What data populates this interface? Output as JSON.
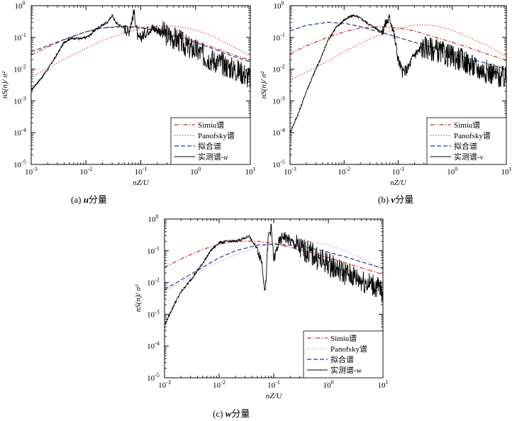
{
  "chart_data": [
    {
      "type": "line",
      "panel": "a",
      "caption": "(a) u分量",
      "xlabel": "nZ/U",
      "ylabel": "nS(n)/ σ²",
      "xscale": "log",
      "yscale": "log",
      "xlim": [
        0.001,
        10
      ],
      "ylim": [
        1e-05,
        1
      ],
      "x_ticks": [
        {
          "value": 0.001,
          "base": "10",
          "exp": "-3"
        },
        {
          "value": 0.01,
          "base": "10",
          "exp": "-2"
        },
        {
          "value": 0.1,
          "base": "10",
          "exp": "-1"
        },
        {
          "value": 1,
          "base": "10",
          "exp": "0"
        },
        {
          "value": 10,
          "base": "10",
          "exp": "1"
        }
      ],
      "y_ticks": [
        {
          "value": 1e-05,
          "base": "10",
          "exp": "-5"
        },
        {
          "value": 0.0001,
          "base": "10",
          "exp": "-4"
        },
        {
          "value": 0.001,
          "base": "10",
          "exp": "-3"
        },
        {
          "value": 0.01,
          "base": "10",
          "exp": "-2"
        },
        {
          "value": 0.1,
          "base": "10",
          "exp": "-1"
        },
        {
          "value": 1,
          "base": "10",
          "exp": "0"
        }
      ],
      "legend_position": "bottom-right",
      "series": [
        {
          "name": "Simiu谱",
          "style": "dashdot",
          "color": "#d62728",
          "x": [
            0.001,
            0.002,
            0.005,
            0.01,
            0.02,
            0.05,
            0.1,
            0.2,
            0.5,
            1,
            2,
            5,
            10
          ],
          "y": [
            0.028,
            0.05,
            0.1,
            0.15,
            0.2,
            0.23,
            0.21,
            0.17,
            0.11,
            0.075,
            0.05,
            0.028,
            0.019
          ]
        },
        {
          "name": "Panofsky谱",
          "style": "dotted",
          "color": "#d62728",
          "x": [
            0.001,
            0.002,
            0.005,
            0.01,
            0.02,
            0.05,
            0.1,
            0.2,
            0.5,
            1,
            2,
            5,
            10
          ],
          "y": [
            0.0055,
            0.011,
            0.025,
            0.045,
            0.08,
            0.14,
            0.19,
            0.23,
            0.22,
            0.17,
            0.11,
            0.05,
            0.026
          ]
        },
        {
          "name": "拟合谱",
          "style": "dashed",
          "color": "#1f3f8f",
          "x": [
            0.001,
            0.002,
            0.005,
            0.01,
            0.02,
            0.05,
            0.1,
            0.2,
            0.5,
            1,
            2,
            5,
            10
          ],
          "y": [
            0.035,
            0.055,
            0.1,
            0.15,
            0.2,
            0.22,
            0.2,
            0.16,
            0.1,
            0.068,
            0.045,
            0.025,
            0.017
          ]
        },
        {
          "name": "实测谱-u",
          "style": "solid",
          "color": "#000000",
          "x": [
            0.001,
            0.0015,
            0.002,
            0.003,
            0.004,
            0.005,
            0.006,
            0.008,
            0.01,
            0.012,
            0.015,
            0.02,
            0.025,
            0.03,
            0.035,
            0.04,
            0.05,
            0.06,
            0.07,
            0.075,
            0.08,
            0.09,
            0.1,
            0.15,
            0.2,
            0.3,
            0.5,
            0.7,
            1,
            1.5,
            2,
            3,
            5,
            7,
            10
          ],
          "y": [
            0.0022,
            0.005,
            0.01,
            0.03,
            0.07,
            0.09,
            0.095,
            0.09,
            0.1,
            0.12,
            0.18,
            0.25,
            0.3,
            0.5,
            0.3,
            0.25,
            0.2,
            0.15,
            0.4,
            0.6,
            0.35,
            0.08,
            0.1,
            0.2,
            0.18,
            0.12,
            0.08,
            0.05,
            0.04,
            0.025,
            0.02,
            0.015,
            0.01,
            0.008,
            0.005
          ]
        }
      ],
      "legend_labels": [
        {
          "text": "Simiu谱",
          "suffix": ""
        },
        {
          "text": "Panofsky谱",
          "suffix": ""
        },
        {
          "text": "拟合谱",
          "suffix": ""
        },
        {
          "text": "实测谱-",
          "suffix": "u"
        }
      ]
    },
    {
      "type": "line",
      "panel": "b",
      "caption": "(b) v分量",
      "xlabel": "nZ/U",
      "ylabel": "nS(n)/ σ²",
      "xscale": "log",
      "yscale": "log",
      "xlim": [
        0.001,
        10
      ],
      "ylim": [
        1e-05,
        1
      ],
      "x_ticks": [
        {
          "value": 0.001,
          "base": "10",
          "exp": "-3"
        },
        {
          "value": 0.01,
          "base": "10",
          "exp": "-2"
        },
        {
          "value": 0.1,
          "base": "10",
          "exp": "-1"
        },
        {
          "value": 1,
          "base": "10",
          "exp": "0"
        },
        {
          "value": 10,
          "base": "10",
          "exp": "1"
        }
      ],
      "y_ticks": [
        {
          "value": 1e-05,
          "base": "10",
          "exp": "-5"
        },
        {
          "value": 0.0001,
          "base": "10",
          "exp": "-4"
        },
        {
          "value": 0.001,
          "base": "10",
          "exp": "-3"
        },
        {
          "value": 0.01,
          "base": "10",
          "exp": "-2"
        },
        {
          "value": 0.1,
          "base": "10",
          "exp": "-1"
        },
        {
          "value": 1,
          "base": "10",
          "exp": "0"
        }
      ],
      "legend_position": "bottom-right",
      "series": [
        {
          "name": "Simiu谱",
          "style": "dashdot",
          "color": "#d62728",
          "x": [
            0.001,
            0.002,
            0.005,
            0.01,
            0.02,
            0.05,
            0.1,
            0.2,
            0.5,
            1,
            2,
            5,
            10
          ],
          "y": [
            0.03,
            0.055,
            0.1,
            0.15,
            0.2,
            0.22,
            0.2,
            0.16,
            0.1,
            0.07,
            0.048,
            0.028,
            0.019
          ]
        },
        {
          "name": "Panofsky谱",
          "style": "dotted",
          "color": "#d62728",
          "x": [
            0.001,
            0.002,
            0.005,
            0.01,
            0.02,
            0.05,
            0.1,
            0.2,
            0.3,
            0.5,
            1,
            2,
            5,
            10
          ],
          "y": [
            0.0045,
            0.008,
            0.018,
            0.035,
            0.065,
            0.13,
            0.19,
            0.24,
            0.25,
            0.23,
            0.17,
            0.1,
            0.05,
            0.025
          ]
        },
        {
          "name": "拟合谱",
          "style": "dashed",
          "color": "#1f3f8f",
          "x": [
            0.001,
            0.002,
            0.005,
            0.01,
            0.02,
            0.05,
            0.1,
            0.2,
            0.5,
            1,
            2,
            5,
            10
          ],
          "y": [
            0.16,
            0.24,
            0.3,
            0.28,
            0.22,
            0.14,
            0.1,
            0.07,
            0.045,
            0.03,
            0.022,
            0.014,
            0.01
          ]
        },
        {
          "name": "实测谱-v",
          "style": "solid",
          "color": "#000000",
          "x": [
            0.001,
            0.0015,
            0.002,
            0.003,
            0.004,
            0.005,
            0.007,
            0.01,
            0.013,
            0.015,
            0.02,
            0.03,
            0.05,
            0.06,
            0.07,
            0.08,
            0.1,
            0.12,
            0.15,
            0.2,
            0.3,
            0.5,
            0.7,
            1,
            1.5,
            2,
            3,
            5,
            7,
            10
          ],
          "y": [
            0.0001,
            0.0005,
            0.002,
            0.01,
            0.03,
            0.08,
            0.2,
            0.35,
            0.45,
            0.5,
            0.4,
            0.25,
            0.15,
            0.3,
            0.4,
            0.2,
            0.02,
            0.008,
            0.01,
            0.03,
            0.05,
            0.04,
            0.03,
            0.025,
            0.02,
            0.015,
            0.01,
            0.008,
            0.006,
            0.005
          ]
        }
      ],
      "legend_labels": [
        {
          "text": "Simiu谱",
          "suffix": ""
        },
        {
          "text": "Panofsky谱",
          "suffix": ""
        },
        {
          "text": "拟合谱",
          "suffix": ""
        },
        {
          "text": "实测谱-",
          "suffix": "v"
        }
      ]
    },
    {
      "type": "line",
      "panel": "c",
      "caption": "(c) w分量",
      "xlabel": "nZ/U",
      "ylabel": "nS(n)/ σ²",
      "xscale": "log",
      "yscale": "log",
      "xlim": [
        0.001,
        10
      ],
      "ylim": [
        1e-05,
        1
      ],
      "x_ticks": [
        {
          "value": 0.001,
          "base": "10",
          "exp": "-3"
        },
        {
          "value": 0.01,
          "base": "10",
          "exp": "-2"
        },
        {
          "value": 0.1,
          "base": "10",
          "exp": "-1"
        },
        {
          "value": 1,
          "base": "10",
          "exp": "0"
        },
        {
          "value": 10,
          "base": "10",
          "exp": "1"
        }
      ],
      "y_ticks": [
        {
          "value": 1e-05,
          "base": "10",
          "exp": "-5"
        },
        {
          "value": 0.0001,
          "base": "10",
          "exp": "-4"
        },
        {
          "value": 0.001,
          "base": "10",
          "exp": "-3"
        },
        {
          "value": 0.01,
          "base": "10",
          "exp": "-2"
        },
        {
          "value": 0.1,
          "base": "10",
          "exp": "-1"
        },
        {
          "value": 1,
          "base": "10",
          "exp": "0"
        }
      ],
      "legend_position": "bottom-right",
      "series": [
        {
          "name": "Simiu谱",
          "style": "dashdot",
          "color": "#d62728",
          "x": [
            0.001,
            0.002,
            0.005,
            0.01,
            0.02,
            0.05,
            0.1,
            0.2,
            0.5,
            1,
            2,
            5,
            10
          ],
          "y": [
            0.03,
            0.055,
            0.11,
            0.16,
            0.2,
            0.2,
            0.17,
            0.13,
            0.085,
            0.06,
            0.042,
            0.026,
            0.018
          ]
        },
        {
          "name": "Panofsky谱",
          "style": "dotted",
          "color": "#e377c2",
          "x": [
            0.001,
            0.002,
            0.005,
            0.01,
            0.02,
            0.05,
            0.1,
            0.2,
            0.5,
            1,
            2,
            5,
            10
          ],
          "y": [
            0.005,
            0.01,
            0.025,
            0.045,
            0.075,
            0.13,
            0.17,
            0.2,
            0.19,
            0.15,
            0.1,
            0.05,
            0.025
          ]
        },
        {
          "name": "拟合谱",
          "style": "dashed",
          "color": "#1f3f8f",
          "x": [
            0.001,
            0.002,
            0.005,
            0.01,
            0.02,
            0.05,
            0.1,
            0.2,
            0.5,
            1,
            2,
            5,
            10
          ],
          "y": [
            0.006,
            0.012,
            0.03,
            0.06,
            0.1,
            0.15,
            0.16,
            0.15,
            0.12,
            0.09,
            0.065,
            0.04,
            0.028
          ]
        },
        {
          "name": "实测谱-w",
          "style": "solid",
          "color": "#000000",
          "x": [
            0.001,
            0.0015,
            0.002,
            0.003,
            0.005,
            0.007,
            0.01,
            0.015,
            0.02,
            0.03,
            0.035,
            0.04,
            0.05,
            0.06,
            0.07,
            0.08,
            0.09,
            0.1,
            0.12,
            0.15,
            0.2,
            0.3,
            0.5,
            0.7,
            1,
            1.5,
            2,
            3,
            5,
            7,
            10
          ],
          "y": [
            0.00045,
            0.002,
            0.005,
            0.012,
            0.04,
            0.1,
            0.18,
            0.2,
            0.2,
            0.25,
            0.3,
            0.2,
            0.12,
            0.05,
            0.005,
            0.3,
            0.5,
            0.05,
            0.15,
            0.3,
            0.2,
            0.12,
            0.08,
            0.05,
            0.04,
            0.025,
            0.02,
            0.015,
            0.01,
            0.008,
            0.005
          ]
        }
      ],
      "legend_labels": [
        {
          "text": "Simiu谱",
          "suffix": ""
        },
        {
          "text": "Panofsky谱",
          "suffix": ""
        },
        {
          "text": "拟合谱",
          "suffix": ""
        },
        {
          "text": "实测谱-",
          "suffix": "w"
        }
      ]
    }
  ],
  "captions": [
    {
      "prefix": "(a) ",
      "var": "u",
      "suffix": "分量"
    },
    {
      "prefix": "(b) ",
      "var": "v",
      "suffix": "分量"
    },
    {
      "prefix": "(c) ",
      "var": "w",
      "suffix": "分量"
    }
  ]
}
